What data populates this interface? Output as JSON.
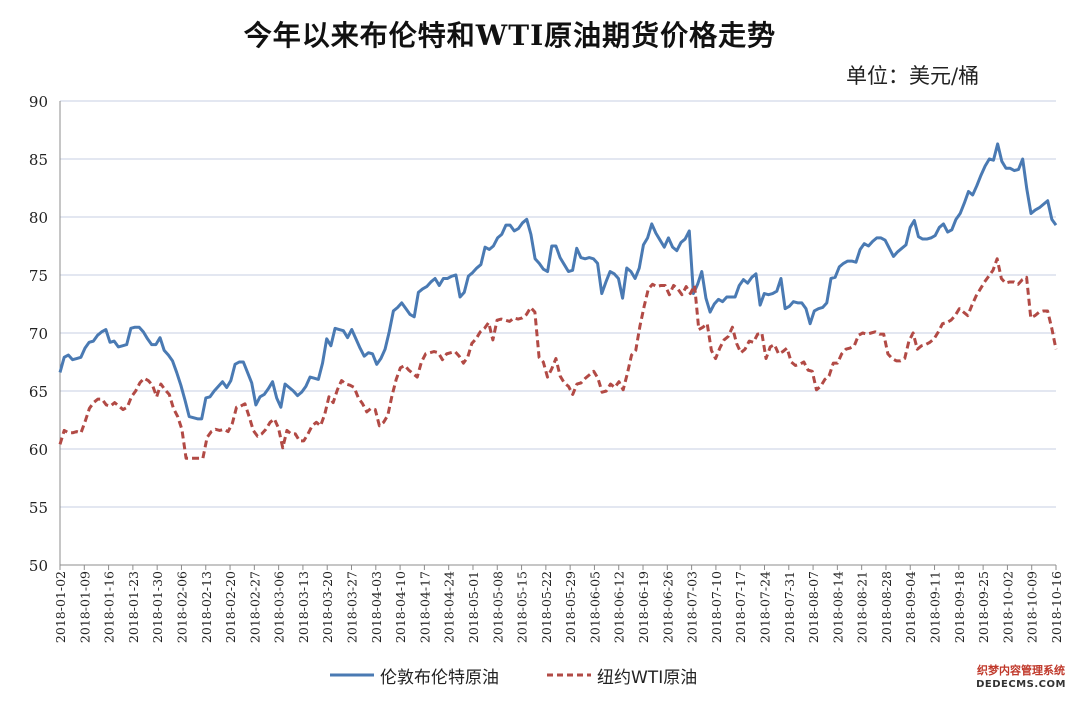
{
  "title": "今年以来布伦特和WTI原油期货价格走势",
  "unit_label": "单位：美元/桶",
  "watermark": {
    "line1": "织梦内容管理系统",
    "line2": "DEDECMS.COM"
  },
  "colors": {
    "brent": "#4a7ab3",
    "wti": "#b24a45",
    "grid": "#c7cfe3",
    "axis": "#8c8c8c"
  },
  "chart_data": {
    "type": "line",
    "title": "今年以来布伦特和WTI原油期货价格走势",
    "unit": "单位：美元/桶",
    "ylim": [
      50,
      90
    ],
    "yticks": [
      50,
      55,
      60,
      65,
      70,
      75,
      80,
      85,
      90
    ],
    "grid": true,
    "legend_position": "bottom",
    "xtick_labels": [
      "2018-01-02",
      "2018-01-09",
      "2018-01-16",
      "2018-01-23",
      "2018-01-30",
      "2018-02-06",
      "2018-02-13",
      "2018-02-20",
      "2018-02-27",
      "2018-03-06",
      "2018-03-13",
      "2018-03-20",
      "2018-03-27",
      "2018-04-03",
      "2018-04-10",
      "2018-04-17",
      "2018-04-24",
      "2018-05-01",
      "2018-05-08",
      "2018-05-15",
      "2018-05-22",
      "2018-05-29",
      "2018-06-05",
      "2018-06-12",
      "2018-06-19",
      "2018-06-26",
      "2018-07-03",
      "2018-07-10",
      "2018-07-17",
      "2018-07-24",
      "2018-07-31",
      "2018-08-07",
      "2018-08-14",
      "2018-08-21",
      "2018-08-28",
      "2018-09-04",
      "2018-09-11",
      "2018-09-18",
      "2018-09-25",
      "2018-10-02",
      "2018-10-09",
      "2018-10-16"
    ],
    "series": [
      {
        "name": "伦敦布伦特原油",
        "style": "solid",
        "color": "#4a7ab3",
        "values": [
          66.6,
          67.9,
          68.1,
          67.7,
          67.8,
          67.9,
          68.7,
          69.2,
          69.3,
          69.8,
          70.1,
          70.3,
          69.2,
          69.3,
          68.8,
          68.9,
          69.0,
          70.4,
          70.5,
          70.5,
          70.1,
          69.5,
          69.0,
          69.0,
          69.6,
          68.5,
          68.1,
          67.6,
          66.6,
          65.5,
          64.2,
          62.8,
          62.7,
          62.6,
          62.6,
          64.4,
          64.5,
          65.0,
          65.4,
          65.8,
          65.3,
          65.9,
          67.3,
          67.5,
          67.5,
          66.6,
          65.7,
          63.8,
          64.5,
          64.7,
          65.2,
          65.8,
          64.4,
          63.6,
          65.6,
          65.3,
          65.0,
          64.6,
          64.9,
          65.4,
          66.2,
          66.1,
          66.0,
          67.4,
          69.5,
          68.9,
          70.4,
          70.3,
          70.2,
          69.6,
          70.3,
          69.5,
          68.7,
          68.0,
          68.3,
          68.2,
          67.3,
          67.8,
          68.6,
          70.1,
          71.9,
          72.2,
          72.6,
          72.1,
          71.6,
          71.4,
          73.5,
          73.8,
          74.0,
          74.4,
          74.7,
          74.1,
          74.7,
          74.7,
          74.9,
          75.0,
          73.1,
          73.5,
          74.9,
          75.2,
          75.6,
          75.9,
          77.4,
          77.2,
          77.5,
          78.2,
          78.5,
          79.3,
          79.3,
          78.8,
          79.0,
          79.5,
          79.8,
          78.5,
          76.4,
          76.0,
          75.5,
          75.3,
          77.5,
          77.5,
          76.5,
          75.9,
          75.3,
          75.4,
          77.3,
          76.5,
          76.4,
          76.5,
          76.4,
          76.0,
          73.4,
          74.4,
          75.3,
          75.1,
          74.7,
          73.0,
          75.6,
          75.3,
          74.7,
          75.6,
          77.6,
          78.2,
          79.4,
          78.6,
          78.0,
          77.4,
          78.2,
          77.4,
          77.1,
          77.8,
          78.1,
          78.8,
          73.4,
          74.2,
          75.3,
          73.0,
          71.8,
          72.5,
          72.9,
          72.7,
          73.1,
          73.1,
          73.1,
          74.1,
          74.6,
          74.3,
          74.8,
          75.1,
          72.4,
          73.4,
          73.3,
          73.4,
          73.6,
          74.7,
          72.1,
          72.3,
          72.7,
          72.6,
          72.6,
          72.1,
          70.8,
          71.9,
          72.1,
          72.2,
          72.6,
          74.7,
          74.8,
          75.7,
          76.0,
          76.2,
          76.2,
          76.1,
          77.2,
          77.7,
          77.5,
          77.9,
          78.2,
          78.2,
          78.0,
          77.3,
          76.6,
          77.0,
          77.3,
          77.6,
          79.1,
          79.7,
          78.3,
          78.1,
          78.1,
          78.2,
          78.4,
          79.1,
          79.4,
          78.7,
          78.9,
          79.8,
          80.3,
          81.2,
          82.2,
          81.9,
          82.7,
          83.6,
          84.4,
          85.0,
          84.9,
          86.3,
          84.8,
          84.2,
          84.2,
          84.0,
          84.1,
          85.0,
          82.4,
          80.3,
          80.6,
          80.8,
          81.1,
          81.4,
          79.8,
          79.3
        ]
      },
      {
        "name": "纽约WTI原油",
        "style": "dashed",
        "color": "#b24a45",
        "values": [
          60.4,
          61.6,
          61.4,
          61.4,
          61.5,
          61.4,
          62.4,
          63.5,
          64.0,
          64.3,
          64.3,
          63.8,
          63.7,
          64.0,
          63.7,
          63.4,
          63.6,
          64.5,
          65.0,
          65.7,
          66.1,
          65.9,
          65.5,
          64.5,
          65.6,
          65.1,
          64.7,
          63.5,
          62.8,
          61.7,
          59.2,
          59.2,
          59.2,
          59.2,
          59.2,
          61.0,
          61.5,
          61.7,
          61.6,
          61.7,
          61.5,
          62.2,
          63.6,
          63.7,
          63.9,
          62.8,
          61.6,
          61.1,
          61.3,
          61.7,
          62.3,
          62.6,
          61.8,
          60.1,
          61.6,
          61.3,
          61.3,
          60.7,
          60.7,
          61.3,
          62.0,
          62.3,
          62.0,
          63.0,
          64.5,
          64.0,
          65.1,
          65.9,
          65.6,
          65.5,
          65.3,
          64.4,
          63.9,
          63.2,
          63.5,
          63.4,
          62.0,
          62.3,
          62.9,
          64.6,
          66.0,
          67.0,
          67.2,
          66.8,
          66.5,
          66.2,
          67.5,
          68.2,
          68.3,
          68.4,
          68.3,
          67.7,
          68.2,
          68.3,
          68.4,
          68.0,
          67.4,
          67.9,
          69.1,
          69.5,
          70.1,
          70.4,
          70.9,
          69.4,
          71.1,
          71.2,
          71.1,
          71.0,
          71.3,
          71.2,
          71.3,
          71.6,
          72.2,
          71.8,
          67.9,
          67.5,
          66.2,
          66.9,
          67.8,
          66.3,
          65.7,
          65.4,
          64.7,
          65.6,
          65.7,
          66.1,
          66.4,
          66.7,
          66.1,
          64.9,
          65.0,
          65.6,
          65.3,
          65.8,
          65.1,
          66.5,
          68.1,
          68.5,
          70.6,
          72.3,
          73.8,
          74.2,
          74.0,
          74.1,
          74.1,
          73.3,
          74.1,
          73.8,
          73.3,
          74.0,
          73.4,
          74.1,
          70.3,
          70.5,
          70.8,
          68.5,
          67.8,
          68.7,
          69.4,
          69.7,
          70.5,
          69.1,
          68.3,
          68.6,
          69.3,
          69.2,
          69.9,
          70.0,
          67.8,
          68.8,
          69.0,
          68.2,
          68.4,
          68.7,
          67.5,
          67.2,
          67.3,
          67.5,
          66.8,
          66.7,
          65.1,
          65.4,
          66.0,
          66.3,
          67.4,
          67.4,
          68.2,
          68.6,
          68.7,
          68.9,
          69.8,
          70.0,
          69.9,
          70.0,
          70.1,
          69.9,
          69.9,
          68.2,
          67.8,
          67.6,
          67.6,
          67.8,
          69.3,
          70.0,
          68.6,
          68.9,
          69.0,
          69.2,
          69.5,
          70.1,
          70.8,
          70.9,
          71.1,
          71.5,
          72.1,
          71.8,
          71.5,
          72.4,
          73.2,
          73.8,
          74.4,
          74.9,
          75.4,
          76.4,
          74.7,
          74.3,
          74.4,
          74.4,
          74.2,
          74.6,
          74.8,
          71.3,
          71.5,
          71.8,
          71.9,
          71.9,
          70.4,
          68.6
        ]
      }
    ]
  }
}
